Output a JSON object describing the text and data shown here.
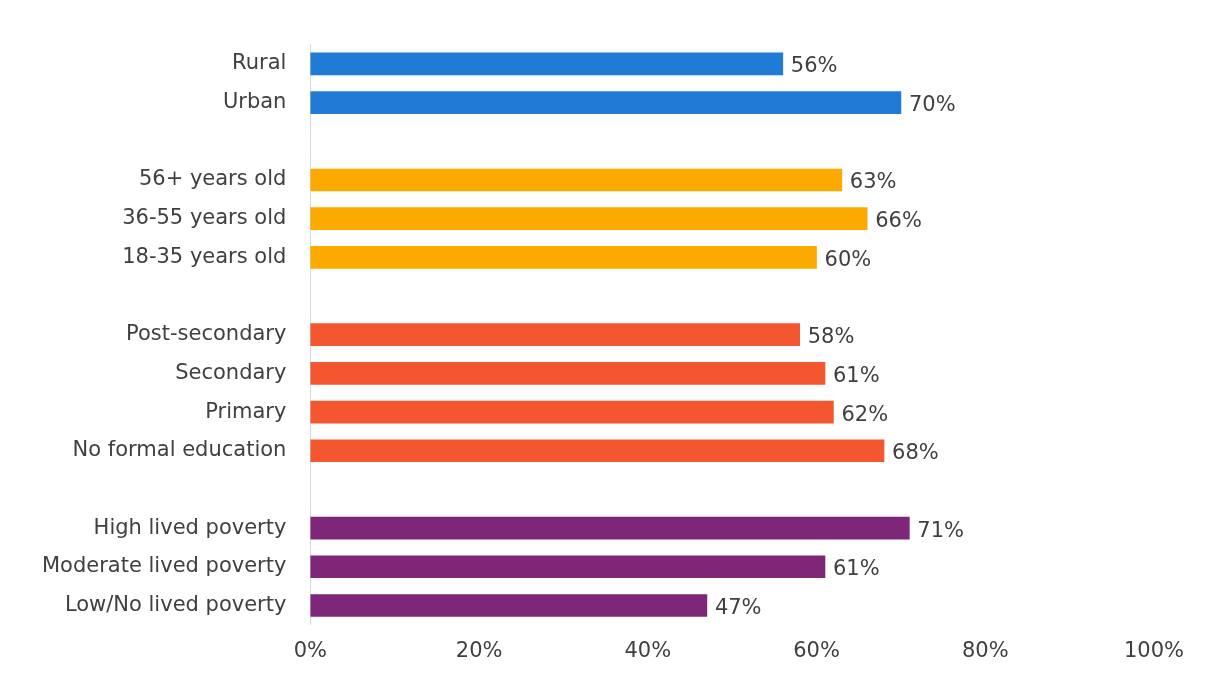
{
  "chart_data": {
    "type": "bar",
    "orientation": "horizontal",
    "categories": [
      "Rural",
      "Urban",
      null,
      "56+ years old",
      "36-55 years old",
      "18-35 years old",
      null,
      "Post-secondary",
      "Secondary",
      "Primary",
      "No formal education",
      null,
      "High lived poverty",
      "Moderate lived poverty",
      "Low/No lived poverty"
    ],
    "values": [
      56,
      70,
      null,
      63,
      66,
      60,
      null,
      58,
      61,
      62,
      68,
      null,
      71,
      61,
      47
    ],
    "colors": [
      "#1f7bd6",
      "#1f7bd6",
      null,
      "#fcaa00",
      "#fcaa00",
      "#fcaa00",
      null,
      "#f4572f",
      "#f4572f",
      "#f4572f",
      "#f4572f",
      null,
      "#7e2678",
      "#7e2678",
      "#7e2678"
    ],
    "value_labels": [
      "56%",
      "70%",
      null,
      "63%",
      "66%",
      "60%",
      null,
      "58%",
      "61%",
      "62%",
      "68%",
      null,
      "71%",
      "61%",
      "47%"
    ],
    "xlim": [
      0,
      100
    ],
    "xticks": [
      {
        "value": 0,
        "label": "0%"
      },
      {
        "value": 20,
        "label": "20%"
      },
      {
        "value": 40,
        "label": "40%"
      },
      {
        "value": 60,
        "label": "60%"
      },
      {
        "value": 80,
        "label": "80%"
      },
      {
        "value": 100,
        "label": "100%"
      }
    ],
    "grid": false,
    "legend": false
  }
}
